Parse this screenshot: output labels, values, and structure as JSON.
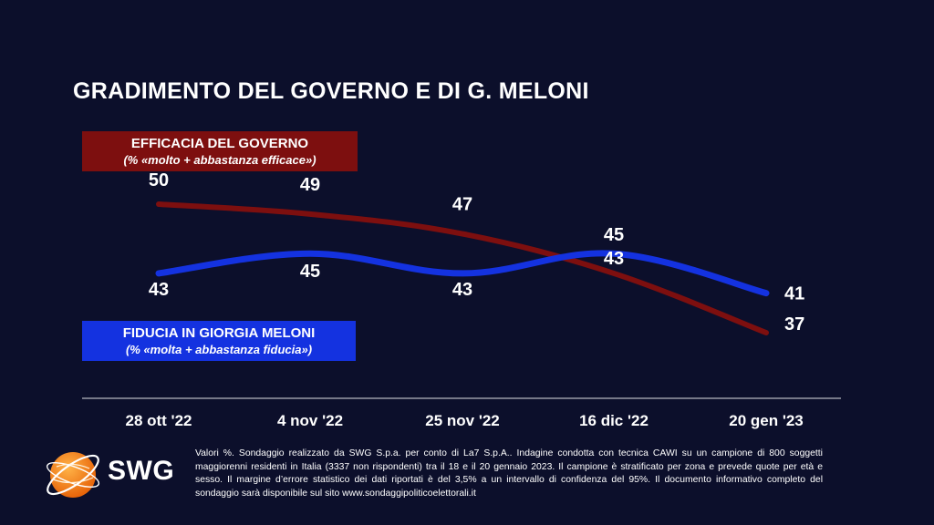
{
  "title": "GRADIMENTO DEL GOVERNO E DI G. MELONI",
  "legend_efficacia": {
    "label": "EFFICACIA DEL GOVERNO",
    "sub": "(% «molto + abbastanza efficace»)",
    "color": "#7d0f0f"
  },
  "legend_fiducia": {
    "label": "FIDUCIA IN GIORGIA MELONI",
    "sub": "(% «molta + abbastanza fiducia»)",
    "color": "#1432e0"
  },
  "chart_data": {
    "type": "line",
    "title": "GRADIMENTO DEL GOVERNO E DI G. MELONI",
    "categories": [
      "28 ott '22",
      "4 nov '22",
      "25 nov '22",
      "16 dic '22",
      "20 gen '23"
    ],
    "series": [
      {
        "name": "EFFICACIA DEL GOVERNO",
        "values": [
          50,
          49,
          47,
          43,
          37
        ],
        "color": "#7d0f0f"
      },
      {
        "name": "FIDUCIA IN GIORGIA MELONI",
        "values": [
          43,
          45,
          43,
          45,
          41
        ],
        "color": "#1432e0"
      }
    ],
    "xlabel": "",
    "ylabel": "",
    "grid": false
  },
  "footer": {
    "brand": "SWG",
    "note": "Valori %. Sondaggio realizzato da SWG S.p.a. per conto di La7 S.p.A.. Indagine condotta con tecnica CAWI su un campione di 800 soggetti maggiorenni residenti in Italia (3337 non rispondenti) tra il 18 e il 20 gennaio 2023. Il campione è stratificato per zona e prevede quote per età e sesso. Il margine d’errore statistico dei dati riportati è del 3,5% a un intervallo di confidenza del 95%. Il documento informativo completo del sondaggio sarà disponibile sul sito www.sondaggipoliticoelettorali.it"
  }
}
